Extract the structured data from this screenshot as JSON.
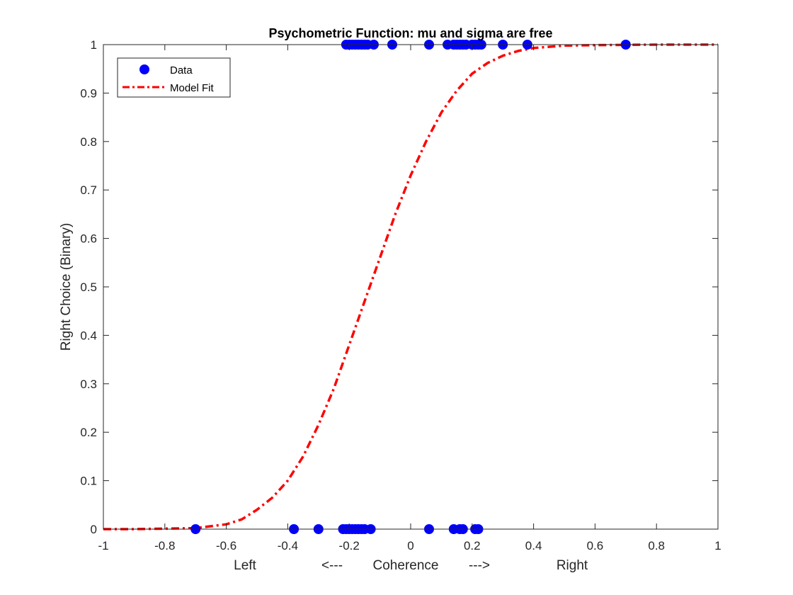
{
  "chart_data": {
    "type": "scatter",
    "title": "Psychometric Function: mu and sigma are free",
    "ylabel": "Right Choice (Binary)",
    "xlabel_parts": [
      "Left",
      "<---",
      "Coherence",
      "--->",
      "Right"
    ],
    "xlim": [
      -1,
      1
    ],
    "ylim": [
      0,
      1
    ],
    "xticks": [
      -1,
      -0.8,
      -0.6,
      -0.4,
      -0.2,
      0,
      0.2,
      0.4,
      0.6,
      0.8,
      1
    ],
    "xtick_labels": [
      "-1",
      "-0.8",
      "-0.6",
      "-0.4",
      "-0.2",
      "0",
      "0.2",
      "0.4",
      "0.6",
      "0.8",
      "1"
    ],
    "yticks": [
      0,
      0.1,
      0.2,
      0.3,
      0.4,
      0.5,
      0.6,
      0.7,
      0.8,
      0.9,
      1
    ],
    "ytick_labels": [
      "0",
      "0.1",
      "0.2",
      "0.3",
      "0.4",
      "0.5",
      "0.6",
      "0.7",
      "0.8",
      "0.9",
      "1"
    ],
    "grid": false,
    "legend_position": "top-left",
    "series": [
      {
        "name": "Data",
        "kind": "points",
        "color": "#0000ff",
        "points": [
          {
            "x": -0.21,
            "y": 1
          },
          {
            "x": -0.2,
            "y": 1
          },
          {
            "x": -0.19,
            "y": 1
          },
          {
            "x": -0.18,
            "y": 1
          },
          {
            "x": -0.17,
            "y": 1
          },
          {
            "x": -0.16,
            "y": 1
          },
          {
            "x": -0.15,
            "y": 1
          },
          {
            "x": -0.14,
            "y": 1
          },
          {
            "x": -0.12,
            "y": 1
          },
          {
            "x": -0.06,
            "y": 1
          },
          {
            "x": 0.06,
            "y": 1
          },
          {
            "x": 0.12,
            "y": 1
          },
          {
            "x": 0.14,
            "y": 1
          },
          {
            "x": 0.15,
            "y": 1
          },
          {
            "x": 0.16,
            "y": 1
          },
          {
            "x": 0.17,
            "y": 1
          },
          {
            "x": 0.18,
            "y": 1
          },
          {
            "x": 0.2,
            "y": 1
          },
          {
            "x": 0.21,
            "y": 1
          },
          {
            "x": 0.22,
            "y": 1
          },
          {
            "x": 0.23,
            "y": 1
          },
          {
            "x": 0.3,
            "y": 1
          },
          {
            "x": 0.38,
            "y": 1
          },
          {
            "x": 0.7,
            "y": 1
          },
          {
            "x": -0.7,
            "y": 0
          },
          {
            "x": -0.38,
            "y": 0
          },
          {
            "x": -0.3,
            "y": 0
          },
          {
            "x": -0.22,
            "y": 0
          },
          {
            "x": -0.21,
            "y": 0
          },
          {
            "x": -0.2,
            "y": 0
          },
          {
            "x": -0.19,
            "y": 0
          },
          {
            "x": -0.18,
            "y": 0
          },
          {
            "x": -0.17,
            "y": 0
          },
          {
            "x": -0.16,
            "y": 0
          },
          {
            "x": -0.15,
            "y": 0
          },
          {
            "x": -0.13,
            "y": 0
          },
          {
            "x": 0.06,
            "y": 0
          },
          {
            "x": 0.14,
            "y": 0
          },
          {
            "x": 0.16,
            "y": 0
          },
          {
            "x": 0.17,
            "y": 0
          },
          {
            "x": 0.21,
            "y": 0
          },
          {
            "x": 0.22,
            "y": 0
          }
        ]
      },
      {
        "name": "Model Fit",
        "kind": "line",
        "color": "#ff0000",
        "linestyle": "dash-dot",
        "points": [
          {
            "x": -1,
            "y": 0
          },
          {
            "x": -0.9,
            "y": 0
          },
          {
            "x": -0.8,
            "y": 0.001
          },
          {
            "x": -0.7,
            "y": 0.002
          },
          {
            "x": -0.6,
            "y": 0.01
          },
          {
            "x": -0.55,
            "y": 0.02
          },
          {
            "x": -0.5,
            "y": 0.04
          },
          {
            "x": -0.45,
            "y": 0.065
          },
          {
            "x": -0.4,
            "y": 0.1
          },
          {
            "x": -0.35,
            "y": 0.15
          },
          {
            "x": -0.3,
            "y": 0.215
          },
          {
            "x": -0.25,
            "y": 0.29
          },
          {
            "x": -0.2,
            "y": 0.38
          },
          {
            "x": -0.15,
            "y": 0.47
          },
          {
            "x": -0.1,
            "y": 0.56
          },
          {
            "x": -0.05,
            "y": 0.65
          },
          {
            "x": 0,
            "y": 0.73
          },
          {
            "x": 0.05,
            "y": 0.8
          },
          {
            "x": 0.1,
            "y": 0.86
          },
          {
            "x": 0.15,
            "y": 0.905
          },
          {
            "x": 0.2,
            "y": 0.94
          },
          {
            "x": 0.25,
            "y": 0.962
          },
          {
            "x": 0.3,
            "y": 0.977
          },
          {
            "x": 0.35,
            "y": 0.987
          },
          {
            "x": 0.4,
            "y": 0.993
          },
          {
            "x": 0.5,
            "y": 0.998
          },
          {
            "x": 0.6,
            "y": 0.999
          },
          {
            "x": 0.8,
            "y": 1
          },
          {
            "x": 1,
            "y": 1
          }
        ]
      }
    ]
  }
}
